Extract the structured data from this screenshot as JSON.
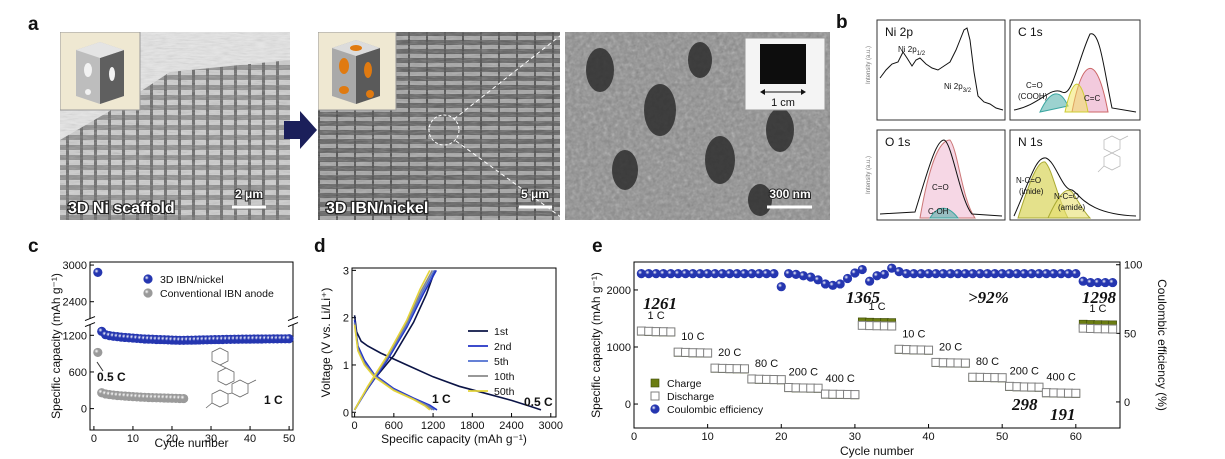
{
  "panel_labels": [
    "a",
    "b",
    "c",
    "d",
    "e"
  ],
  "panel_a": {
    "images": [
      {
        "caption": "3D Ni scaffold",
        "scale_bar": "2 μm"
      },
      {
        "caption": "3D IBN/nickel",
        "scale_bar": "5 μm"
      },
      {
        "scale_bar": "300 nm",
        "inset_scale": "1 cm"
      }
    ]
  },
  "panel_b": {
    "y_label": "Intensity (a.u.)",
    "spectra": [
      {
        "title": "Ni 2p",
        "peaks": [
          {
            "text": "Ni 2p",
            "sub": "1/2"
          },
          {
            "text": "Ni 2p",
            "sub": "3/2"
          }
        ]
      },
      {
        "title": "C 1s",
        "peaks": [
          {
            "text": "C=O"
          },
          {
            "text": "(COOH)"
          },
          {
            "text": "C=C"
          }
        ]
      },
      {
        "title": "O 1s",
        "peaks": [
          {
            "text": "C=O"
          },
          {
            "text": "C-OH"
          }
        ]
      },
      {
        "title": "N 1s",
        "peaks": [
          {
            "text": "N-C=O"
          },
          {
            "text": "(imide)"
          },
          {
            "text": "N-C=O"
          },
          {
            "text": "(amide)"
          }
        ]
      }
    ]
  },
  "chart_data": [
    {
      "type": "scatter",
      "y_label": "Specific capacity (mAh g⁻¹)",
      "x_label": "Cycle number",
      "xlim": [
        -1,
        51
      ],
      "xticks": [
        0,
        10,
        20,
        30,
        40,
        50
      ],
      "ylim": [
        -350,
        3050
      ],
      "ybreak": [
        1350,
        2150
      ],
      "yticks": [
        0,
        600,
        1200,
        2400,
        3000
      ],
      "series": [
        {
          "name": "3D IBN/nickel",
          "color": "#2536b0",
          "marker": "circle",
          "x": [
            1,
            2,
            3,
            4,
            5,
            6,
            7,
            8,
            9,
            10,
            11,
            12,
            13,
            14,
            15,
            16,
            17,
            18,
            19,
            20,
            21,
            22,
            23,
            24,
            25,
            26,
            27,
            28,
            29,
            30,
            31,
            32,
            33,
            34,
            35,
            36,
            37,
            38,
            39,
            40,
            41,
            42,
            43,
            44,
            45,
            46,
            47,
            48,
            49,
            50
          ],
          "values": [
            2880,
            1265,
            1210,
            1195,
            1185,
            1178,
            1170,
            1165,
            1160,
            1155,
            1150,
            1145,
            1140,
            1138,
            1135,
            1132,
            1130,
            1128,
            1125,
            1122,
            1120,
            1118,
            1118,
            1120,
            1120,
            1122,
            1124,
            1125,
            1126,
            1128,
            1130,
            1130,
            1132,
            1133,
            1134,
            1135,
            1136,
            1137,
            1138,
            1138,
            1139,
            1140,
            1140,
            1141,
            1141,
            1142,
            1142,
            1143,
            1143,
            1144
          ]
        },
        {
          "name": "Conventional IBN anode",
          "color": "#9a9a9a",
          "marker": "circle",
          "x": [
            1,
            2,
            3,
            4,
            5,
            6,
            7,
            8,
            9,
            10,
            11,
            12,
            13,
            14,
            15,
            16,
            17,
            18,
            19,
            20,
            21,
            22,
            23
          ],
          "values": [
            920,
            260,
            240,
            230,
            222,
            215,
            210,
            205,
            200,
            196,
            192,
            188,
            185,
            182,
            180,
            178,
            176,
            174,
            172,
            170,
            168,
            166,
            165
          ]
        }
      ],
      "annotations": [
        "0.5 C",
        "1 C"
      ]
    },
    {
      "type": "line",
      "y_label": "Voltage (V vs. Li/Li⁺)",
      "x_label": "Specific capacity (mAh g⁻¹)",
      "xlim": [
        -40,
        3080
      ],
      "xticks": [
        0,
        600,
        1200,
        1800,
        2400,
        3000
      ],
      "ylim": [
        -0.1,
        3.05
      ],
      "yticks": [
        0,
        1,
        2,
        3
      ],
      "series": [
        {
          "name": "1st",
          "color": "#0b1446",
          "x": [
            0,
            30,
            100,
            200,
            400,
            800,
            1200,
            1600,
            2000,
            2400,
            2700,
            2850,
            null,
            0,
            100,
            300,
            600,
            900,
            1100,
            1230
          ],
          "values": [
            2.05,
            1.7,
            1.5,
            1.4,
            1.25,
            1.0,
            0.75,
            0.55,
            0.4,
            0.25,
            0.12,
            0.05,
            null,
            0.05,
            0.3,
            0.7,
            1.2,
            1.9,
            2.5,
            3.0
          ]
        },
        {
          "name": "2nd",
          "color": "#2233c4",
          "x": [
            0,
            50,
            150,
            300,
            600,
            900,
            1150,
            1260,
            null,
            0,
            200,
            500,
            800,
            1050,
            1250
          ],
          "values": [
            1.95,
            1.4,
            1.1,
            0.8,
            0.5,
            0.3,
            0.15,
            0.05,
            null,
            0.05,
            0.5,
            1.1,
            1.8,
            2.5,
            3.0
          ]
        },
        {
          "name": "5th",
          "color": "#4f6fd0",
          "x": [
            0,
            50,
            150,
            300,
            600,
            900,
            1120,
            1220,
            null,
            0,
            200,
            500,
            800,
            1040,
            1220
          ],
          "values": [
            1.9,
            1.35,
            1.05,
            0.78,
            0.48,
            0.28,
            0.14,
            0.05,
            null,
            0.05,
            0.52,
            1.15,
            1.85,
            2.55,
            3.0
          ]
        },
        {
          "name": "10th",
          "color": "#8a8a8a",
          "x": [
            0,
            50,
            150,
            300,
            600,
            900,
            1100,
            1190,
            null,
            0,
            200,
            500,
            800,
            1020,
            1190
          ],
          "values": [
            1.88,
            1.33,
            1.03,
            0.77,
            0.47,
            0.28,
            0.14,
            0.05,
            null,
            0.05,
            0.53,
            1.17,
            1.9,
            2.57,
            3.0
          ]
        },
        {
          "name": "50th",
          "color": "#e4d43a",
          "x": [
            0,
            50,
            150,
            300,
            600,
            900,
            1080,
            1150,
            null,
            0,
            200,
            500,
            800,
            1000,
            1150
          ],
          "values": [
            1.85,
            1.3,
            1.0,
            0.75,
            0.46,
            0.27,
            0.13,
            0.05,
            null,
            0.05,
            0.55,
            1.2,
            1.95,
            2.6,
            3.0
          ]
        }
      ],
      "annotations": [
        "1 C",
        "0.5 C"
      ]
    },
    {
      "type": "scatter",
      "y_label": "Specific capacity (mAh g⁻¹)",
      "y2_label": "Coulombic efficiency (%)",
      "x_label": "Cycle number",
      "xlim": [
        0,
        66
      ],
      "xticks": [
        0,
        10,
        20,
        30,
        40,
        50,
        60
      ],
      "ylim": [
        -420,
        2490
      ],
      "yticks": [
        0,
        1000,
        2000
      ],
      "y2lim": [
        -19,
        102
      ],
      "y2ticks": [
        0,
        50,
        100
      ],
      "x": [
        1,
        2,
        3,
        4,
        5,
        6,
        7,
        8,
        9,
        10,
        11,
        12,
        13,
        14,
        15,
        16,
        17,
        18,
        19,
        20,
        21,
        22,
        23,
        24,
        25,
        26,
        27,
        28,
        29,
        30,
        31,
        32,
        33,
        34,
        35,
        36,
        37,
        38,
        39,
        40,
        41,
        42,
        43,
        44,
        45,
        46,
        47,
        48,
        49,
        50,
        51,
        52,
        53,
        54,
        55,
        56,
        57,
        58,
        59,
        60,
        61,
        62,
        63,
        64,
        65
      ],
      "series": [
        {
          "name": "Charge",
          "color": "#6b7d12",
          "marker": "square",
          "values": [
            1275,
            1270,
            1265,
            1263,
            1260,
            905,
            900,
            895,
            893,
            890,
            625,
            620,
            617,
            615,
            613,
            435,
            430,
            427,
            425,
            423,
            285,
            280,
            277,
            275,
            273,
            170,
            167,
            165,
            163,
            161,
            1440,
            1435,
            1430,
            1430,
            1428,
            955,
            950,
            945,
            943,
            940,
            725,
            720,
            717,
            715,
            713,
            465,
            463,
            461,
            459,
            457,
            305,
            300,
            295,
            293,
            291,
            195,
            191,
            188,
            186,
            184,
            1400,
            1395,
            1392,
            1390,
            1388
          ]
        },
        {
          "name": "Discharge",
          "color": "#7f7f7f",
          "marker": "open-square",
          "values": [
            1280,
            1275,
            1270,
            1268,
            1265,
            910,
            905,
            900,
            898,
            895,
            630,
            625,
            622,
            620,
            618,
            440,
            435,
            432,
            430,
            428,
            290,
            285,
            282,
            280,
            278,
            175,
            172,
            170,
            168,
            166,
            1380,
            1375,
            1372,
            1370,
            1368,
            960,
            955,
            950,
            948,
            945,
            730,
            725,
            722,
            720,
            718,
            470,
            468,
            466,
            464,
            462,
            310,
            305,
            300,
            298,
            296,
            200,
            196,
            193,
            191,
            189,
            1330,
            1325,
            1320,
            1318,
            1315
          ]
        },
        {
          "name": "Coulombic efficiency",
          "color": "#2536b0",
          "marker": "circle",
          "axis": "y2",
          "values": [
            93.5,
            93.5,
            93.5,
            93.5,
            93.5,
            93.5,
            93.5,
            93.5,
            93.5,
            93.5,
            93.5,
            93.5,
            93.5,
            93.5,
            93.5,
            93.5,
            93.5,
            93.5,
            93.5,
            84,
            93.5,
            93,
            92,
            91,
            89,
            86,
            85,
            86,
            90,
            94,
            96.5,
            88,
            92,
            93,
            97.5,
            95,
            93.5,
            93.5,
            93.5,
            93.5,
            93.5,
            93.5,
            93.5,
            93.5,
            93.5,
            93.5,
            93.5,
            93.5,
            93.5,
            93.5,
            93.5,
            93.5,
            93.5,
            93.5,
            93.5,
            93.5,
            93.5,
            93.5,
            93.5,
            93.5,
            88,
            87,
            87,
            87,
            87
          ]
        }
      ],
      "rate_labels": [
        "1 C",
        "10 C",
        "20 C",
        "80 C",
        "200 C",
        "400 C",
        "1 C",
        "10 C",
        "20 C",
        "80 C",
        "200 C",
        "400 C",
        "1 C"
      ],
      "annotations": [
        "1261",
        "1365",
        ">92%",
        "1298",
        "298",
        "191"
      ]
    }
  ]
}
